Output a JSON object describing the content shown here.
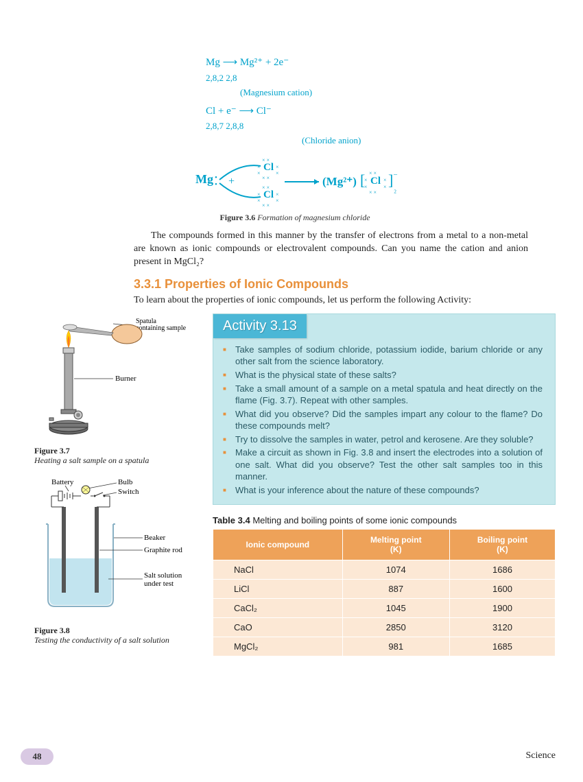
{
  "equations": {
    "mg_line": "Mg ⟶ Mg²⁺ + 2e⁻",
    "mg_config": "2,8,2    2,8",
    "mg_annot": "(Magnesium cation)",
    "cl_line": "Cl  + e⁻ ⟶ Cl⁻",
    "cl_config": "2,8,7          2,8,8",
    "cl_annot": "(Chloride anion)"
  },
  "fig36": {
    "label": "Figure 3.6",
    "caption": "Formation of magnesium chloride"
  },
  "body_para": "The compounds formed in this manner by the transfer of electrons from a metal to a non-metal are known as ionic compounds or electrovalent compounds. Can you name the cation and anion present in MgCl₂?",
  "section_title": "3.3.1 Properties of Ionic Compounds",
  "intro": "To learn about the properties of ionic compounds, let us perform the following Activity:",
  "fig37": {
    "label": "Figure 3.7",
    "caption": "Heating a salt sample on a spatula",
    "spatula_label": "Spatula containing sample",
    "burner_label": "Burner"
  },
  "fig38": {
    "label": "Figure 3.8",
    "caption": "Testing the conductivity of a salt solution",
    "battery": "Battery",
    "bulb": "Bulb",
    "switch": "Switch",
    "beaker": "Beaker",
    "rod": "Graphite rod",
    "solution": "Salt solution under test"
  },
  "activity": {
    "title": "Activity 3.13",
    "items": [
      "Take samples of sodium chloride, potassium iodide, barium chloride or any other salt from the science laboratory.",
      "What is the physical state of these salts?",
      "Take a small amount of a sample on a metal spatula and heat directly on the flame (Fig. 3.7). Repeat with other samples.",
      "What did you observe? Did the samples impart any colour to the flame? Do these compounds melt?",
      "Try to dissolve the samples in water, petrol and kerosene. Are they soluble?",
      "Make a circuit as shown in Fig. 3.8 and insert the electrodes into a solution of one salt. What did you observe? Test the other salt samples too in this manner.",
      "What is your inference about the nature of these compounds?"
    ]
  },
  "table": {
    "label": "Table 3.4",
    "caption": "Melting and boiling points of some ionic compounds",
    "columns": [
      "Ionic compound",
      "Melting point (K)",
      "Boiling point (K)"
    ],
    "rows": [
      [
        "NaCl",
        "1074",
        "1686"
      ],
      [
        "LiCl",
        "887",
        "1600"
      ],
      [
        "CaCl₂",
        "1045",
        "1900"
      ],
      [
        "CaO",
        "2850",
        "3120"
      ],
      [
        "MgCl₂",
        "981",
        "1685"
      ]
    ],
    "header_bg": "#eea259",
    "cell_bg": "#fce8d5"
  },
  "page_number": "48",
  "subject": "Science"
}
